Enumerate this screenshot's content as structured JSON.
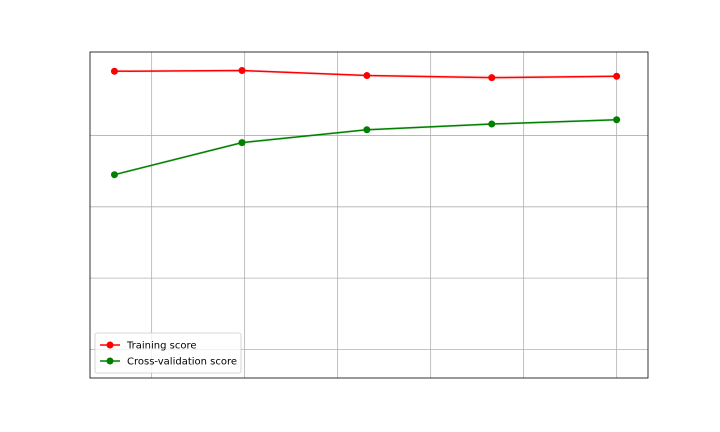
{
  "chart_data": {
    "type": "line",
    "title": "",
    "xlabel": "",
    "ylabel": "",
    "xlim": [
      0.034,
      1.084
    ],
    "ylim": [
      0.66,
      1.117
    ],
    "grid": true,
    "x_gridlines": [
      0.15,
      0.325,
      0.5,
      0.675,
      0.85,
      1.025
    ],
    "y_gridlines": [
      0.7,
      0.8,
      0.9,
      1.0
    ],
    "legend": {
      "position": "lower left"
    },
    "series": [
      {
        "name": "Training score",
        "color": "#ff0000",
        "marker": "circle",
        "x": [
          0.08,
          0.32,
          0.555,
          0.79,
          1.025
        ],
        "y": [
          1.09,
          1.091,
          1.084,
          1.081,
          1.083
        ],
        "band": [
          0.002,
          0.002,
          0.002,
          0.003,
          0.002
        ]
      },
      {
        "name": "Cross-validation score",
        "color": "#008000",
        "marker": "circle",
        "x": [
          0.08,
          0.32,
          0.555,
          0.79,
          1.025
        ],
        "y": [
          0.945,
          0.99,
          1.008,
          1.016,
          1.022
        ],
        "band": [
          0.002,
          0.002,
          0.002,
          0.002,
          0.002
        ]
      }
    ]
  }
}
